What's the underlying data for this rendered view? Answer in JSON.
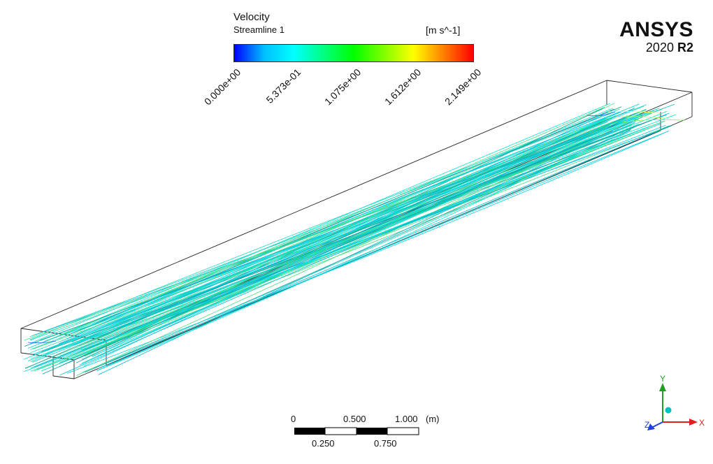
{
  "legend": {
    "title": "Velocity",
    "subtitle": "Streamline 1",
    "units": "[m s^-1]",
    "ticks": [
      "0.000e+00",
      "5.373e-01",
      "1.075e+00",
      "1.612e+00",
      "2.149e+00"
    ],
    "colormap": [
      "#0000ff",
      "#00bfff",
      "#00ffff",
      "#00ff80",
      "#00ff00",
      "#80ff00",
      "#ffff00",
      "#ff8000",
      "#ff0000"
    ]
  },
  "brand": {
    "name": "ANSYS",
    "version_year": "2020",
    "version_release": "R2"
  },
  "scale_bar": {
    "top_labels": [
      "0",
      "0.500",
      "1.000"
    ],
    "unit": "(m)",
    "bottom_labels": [
      "0.250",
      "0.750"
    ]
  },
  "triad": {
    "x_label": "X",
    "y_label": "Y",
    "z_label": "Z",
    "colors": {
      "x": "#e02020",
      "y": "#20a020",
      "z": "#2040e0",
      "center": "#00c0c0"
    }
  },
  "streamline_colors": [
    "#00e5d0",
    "#20d8c0",
    "#00cfe0",
    "#40e080",
    "#00b8d8",
    "#10a0a0"
  ]
}
